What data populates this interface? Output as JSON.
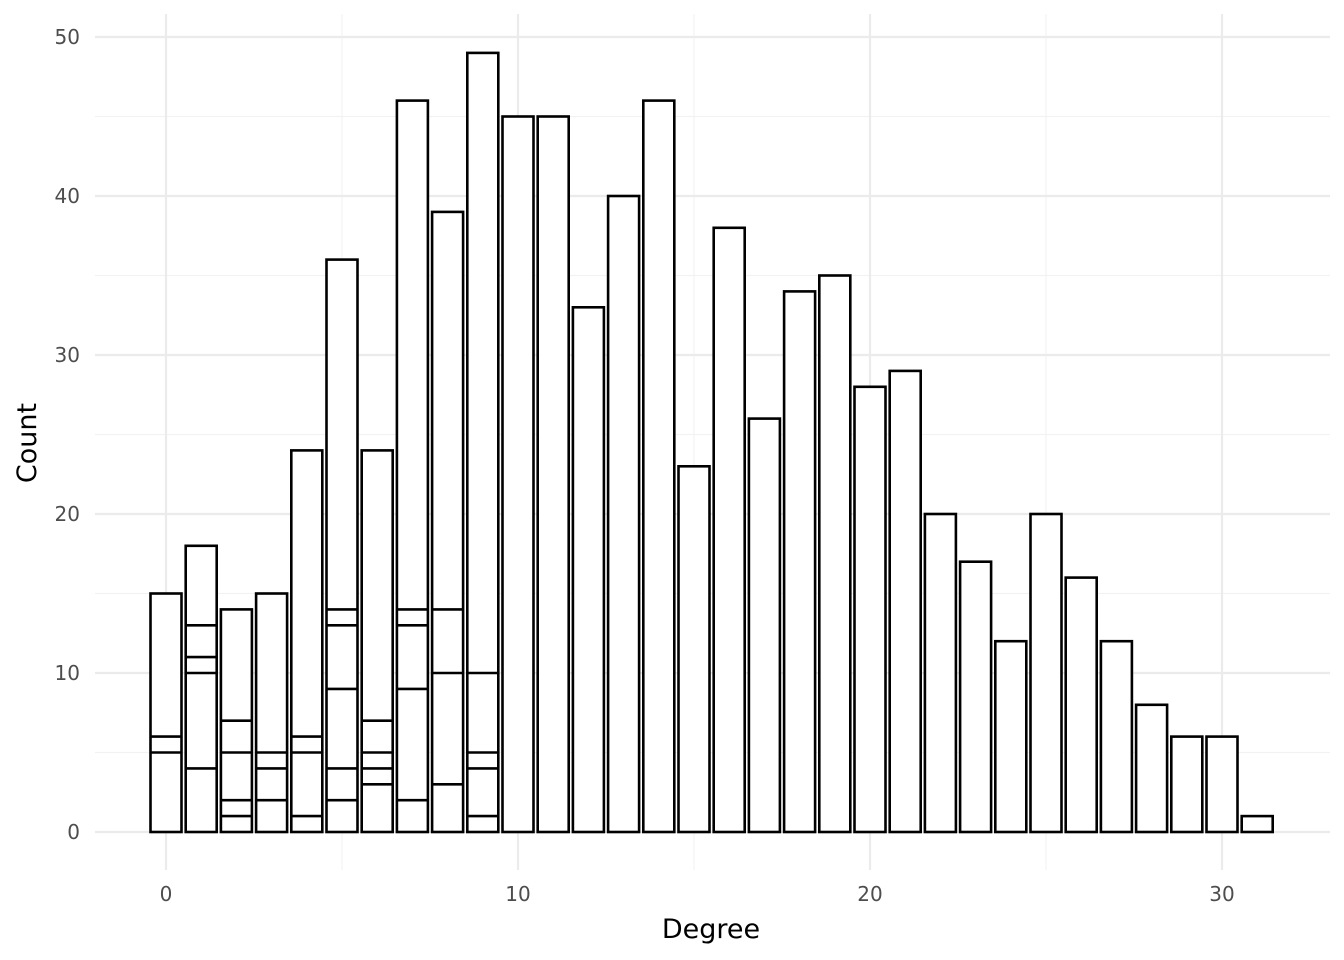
{
  "chart_data": {
    "type": "bar",
    "stacked": true,
    "title": "",
    "xlabel": "Degree",
    "ylabel": "Count",
    "xlim": [
      -2,
      33
    ],
    "ylim": [
      -2.4,
      52
    ],
    "x_ticks": [
      0,
      10,
      20,
      30
    ],
    "y_ticks": [
      0,
      10,
      20,
      30,
      40,
      50
    ],
    "grid": true,
    "legend": "none",
    "colors": {
      "bar_fill": "#ffffff",
      "bar_stroke": "#000000",
      "grid": "#ebebeb"
    },
    "bars": [
      {
        "x": 0,
        "total": 15,
        "stack_boundaries": [
          5,
          6
        ]
      },
      {
        "x": 1,
        "total": 18,
        "stack_boundaries": [
          4,
          10,
          11,
          13
        ]
      },
      {
        "x": 2,
        "total": 14,
        "stack_boundaries": [
          1,
          2,
          5,
          7
        ]
      },
      {
        "x": 3,
        "total": 15,
        "stack_boundaries": [
          2,
          4,
          5
        ]
      },
      {
        "x": 4,
        "total": 24,
        "stack_boundaries": [
          1,
          5,
          6
        ]
      },
      {
        "x": 5,
        "total": 36,
        "stack_boundaries": [
          2,
          4,
          9,
          13,
          14
        ]
      },
      {
        "x": 6,
        "total": 24,
        "stack_boundaries": [
          3,
          4,
          5,
          7
        ]
      },
      {
        "x": 7,
        "total": 46,
        "stack_boundaries": [
          2,
          9,
          13,
          14
        ]
      },
      {
        "x": 8,
        "total": 39,
        "stack_boundaries": [
          3,
          10,
          14
        ]
      },
      {
        "x": 9,
        "total": 49,
        "stack_boundaries": [
          1,
          4,
          5,
          10
        ]
      },
      {
        "x": 10,
        "total": 45,
        "stack_boundaries": []
      },
      {
        "x": 11,
        "total": 45,
        "stack_boundaries": []
      },
      {
        "x": 12,
        "total": 33,
        "stack_boundaries": []
      },
      {
        "x": 13,
        "total": 40,
        "stack_boundaries": []
      },
      {
        "x": 14,
        "total": 46,
        "stack_boundaries": []
      },
      {
        "x": 15,
        "total": 23,
        "stack_boundaries": []
      },
      {
        "x": 16,
        "total": 38,
        "stack_boundaries": []
      },
      {
        "x": 17,
        "total": 26,
        "stack_boundaries": []
      },
      {
        "x": 18,
        "total": 34,
        "stack_boundaries": []
      },
      {
        "x": 19,
        "total": 35,
        "stack_boundaries": []
      },
      {
        "x": 20,
        "total": 28,
        "stack_boundaries": []
      },
      {
        "x": 21,
        "total": 29,
        "stack_boundaries": []
      },
      {
        "x": 22,
        "total": 20,
        "stack_boundaries": []
      },
      {
        "x": 23,
        "total": 17,
        "stack_boundaries": []
      },
      {
        "x": 24,
        "total": 12,
        "stack_boundaries": []
      },
      {
        "x": 25,
        "total": 20,
        "stack_boundaries": []
      },
      {
        "x": 26,
        "total": 16,
        "stack_boundaries": []
      },
      {
        "x": 27,
        "total": 12,
        "stack_boundaries": []
      },
      {
        "x": 28,
        "total": 8,
        "stack_boundaries": []
      },
      {
        "x": 29,
        "total": 6,
        "stack_boundaries": []
      },
      {
        "x": 30,
        "total": 6,
        "stack_boundaries": []
      },
      {
        "x": 31,
        "total": 1,
        "stack_boundaries": []
      }
    ]
  }
}
